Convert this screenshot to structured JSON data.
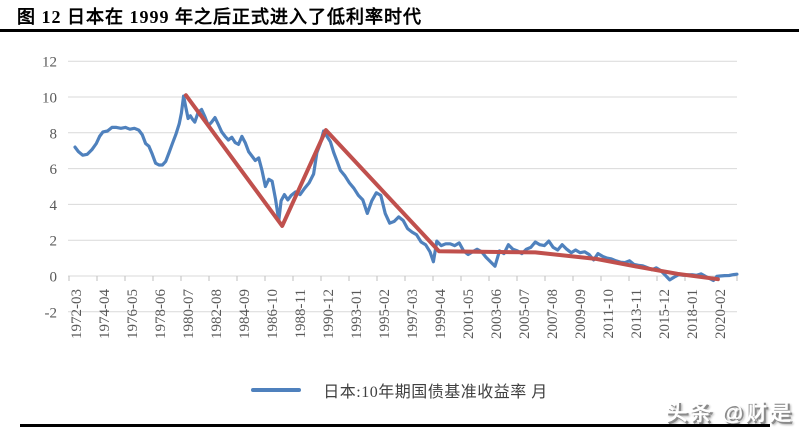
{
  "title": {
    "text": "图 12 日本在 1999 年之后正式进入了低利率时代"
  },
  "watermark": "头条 @财是",
  "chart_data": {
    "type": "line",
    "title": "图 12 日本在 1999 年之后正式进入了低利率时代",
    "xlabel": "",
    "ylabel": "",
    "ylim": [
      -2,
      12
    ],
    "y_ticks": [
      12,
      10,
      8,
      6,
      4,
      2,
      0,
      -2
    ],
    "grid": "horizontal",
    "legend_position": "bottom",
    "legend_label": "日本:10年期国债基准收益率 月",
    "x_tick_labels": [
      "1972-03",
      "1974-04",
      "1976-05",
      "1978-06",
      "1980-07",
      "1982-08",
      "1984-09",
      "1986-10",
      "1988-11",
      "1990-12",
      "1993-01",
      "1995-02",
      "1997-03",
      "1999-04",
      "2001-05",
      "2003-06",
      "2005-07",
      "2007-08",
      "2009-09",
      "2011-10",
      "2013-11",
      "2015-12",
      "2018-01",
      "2020-02"
    ],
    "colors": {
      "series_blue": "#4F81BD",
      "trend_red": "#C0504D",
      "gridline": "#D9D9D9",
      "tick": "#BFBFBF",
      "axis_text": "#595959"
    },
    "series": [
      {
        "key": "jgb_10y_yield_monthly",
        "name": "日本:10年期国债基准收益率 月",
        "color": "#4F81BD",
        "width": 3.2,
        "points": [
          [
            "1972-03",
            7.2
          ],
          [
            "1972-06",
            6.95
          ],
          [
            "1972-10",
            6.75
          ],
          [
            "1973-02",
            6.8
          ],
          [
            "1973-06",
            7.05
          ],
          [
            "1973-10",
            7.4
          ],
          [
            "1974-01",
            7.8
          ],
          [
            "1974-04",
            8.05
          ],
          [
            "1974-08",
            8.1
          ],
          [
            "1974-12",
            8.3
          ],
          [
            "1975-04",
            8.3
          ],
          [
            "1975-08",
            8.25
          ],
          [
            "1975-12",
            8.3
          ],
          [
            "1976-04",
            8.2
          ],
          [
            "1976-08",
            8.25
          ],
          [
            "1976-12",
            8.15
          ],
          [
            "1977-03",
            7.9
          ],
          [
            "1977-06",
            7.4
          ],
          [
            "1977-09",
            7.25
          ],
          [
            "1977-12",
            6.8
          ],
          [
            "1978-03",
            6.3
          ],
          [
            "1978-06",
            6.2
          ],
          [
            "1978-09",
            6.2
          ],
          [
            "1978-12",
            6.4
          ],
          [
            "1979-03",
            6.9
          ],
          [
            "1979-06",
            7.4
          ],
          [
            "1979-09",
            7.9
          ],
          [
            "1979-12",
            8.5
          ],
          [
            "1980-02",
            9.1
          ],
          [
            "1980-04",
            10.05
          ],
          [
            "1980-06",
            9.4
          ],
          [
            "1980-08",
            8.8
          ],
          [
            "1980-10",
            8.95
          ],
          [
            "1980-12",
            8.75
          ],
          [
            "1981-02",
            8.6
          ],
          [
            "1981-05",
            9.15
          ],
          [
            "1981-08",
            9.3
          ],
          [
            "1981-11",
            8.9
          ],
          [
            "1982-02",
            8.4
          ],
          [
            "1982-05",
            8.6
          ],
          [
            "1982-08",
            8.85
          ],
          [
            "1982-11",
            8.45
          ],
          [
            "1983-02",
            8.05
          ],
          [
            "1983-05",
            7.8
          ],
          [
            "1983-08",
            7.6
          ],
          [
            "1983-11",
            7.75
          ],
          [
            "1984-02",
            7.45
          ],
          [
            "1984-05",
            7.35
          ],
          [
            "1984-08",
            7.8
          ],
          [
            "1984-11",
            7.45
          ],
          [
            "1985-02",
            6.95
          ],
          [
            "1985-05",
            6.7
          ],
          [
            "1985-08",
            6.45
          ],
          [
            "1985-11",
            6.6
          ],
          [
            "1986-02",
            5.9
          ],
          [
            "1986-05",
            5.0
          ],
          [
            "1986-08",
            5.4
          ],
          [
            "1986-11",
            5.3
          ],
          [
            "1987-02",
            4.3
          ],
          [
            "1987-05",
            3.1
          ],
          [
            "1987-07",
            4.2
          ],
          [
            "1987-10",
            4.55
          ],
          [
            "1988-01",
            4.25
          ],
          [
            "1988-04",
            4.5
          ],
          [
            "1988-08",
            4.7
          ],
          [
            "1988-12",
            4.55
          ],
          [
            "1989-04",
            4.9
          ],
          [
            "1989-08",
            5.2
          ],
          [
            "1989-12",
            5.7
          ],
          [
            "1990-03",
            6.9
          ],
          [
            "1990-06",
            7.4
          ],
          [
            "1990-09",
            8.1
          ],
          [
            "1990-12",
            7.8
          ],
          [
            "1991-03",
            7.5
          ],
          [
            "1991-06",
            6.9
          ],
          [
            "1991-09",
            6.4
          ],
          [
            "1991-12",
            5.9
          ],
          [
            "1992-04",
            5.6
          ],
          [
            "1992-08",
            5.2
          ],
          [
            "1992-12",
            4.9
          ],
          [
            "1993-04",
            4.5
          ],
          [
            "1993-08",
            4.25
          ],
          [
            "1993-12",
            3.5
          ],
          [
            "1994-04",
            4.2
          ],
          [
            "1994-08",
            4.65
          ],
          [
            "1994-12",
            4.5
          ],
          [
            "1995-04",
            3.5
          ],
          [
            "1995-08",
            2.95
          ],
          [
            "1995-12",
            3.05
          ],
          [
            "1996-04",
            3.3
          ],
          [
            "1996-08",
            3.1
          ],
          [
            "1996-12",
            2.65
          ],
          [
            "1997-04",
            2.45
          ],
          [
            "1997-08",
            2.3
          ],
          [
            "1997-12",
            1.9
          ],
          [
            "1998-04",
            1.75
          ],
          [
            "1998-08",
            1.35
          ],
          [
            "1998-11",
            0.8
          ],
          [
            "1999-02",
            1.95
          ],
          [
            "1999-06",
            1.7
          ],
          [
            "1999-10",
            1.8
          ],
          [
            "2000-02",
            1.8
          ],
          [
            "2000-06",
            1.7
          ],
          [
            "2000-10",
            1.85
          ],
          [
            "2001-02",
            1.4
          ],
          [
            "2001-06",
            1.2
          ],
          [
            "2001-10",
            1.35
          ],
          [
            "2002-02",
            1.5
          ],
          [
            "2002-06",
            1.35
          ],
          [
            "2002-10",
            1.05
          ],
          [
            "2003-02",
            0.8
          ],
          [
            "2003-06",
            0.55
          ],
          [
            "2003-10",
            1.4
          ],
          [
            "2004-02",
            1.25
          ],
          [
            "2004-06",
            1.75
          ],
          [
            "2004-10",
            1.5
          ],
          [
            "2005-02",
            1.4
          ],
          [
            "2005-06",
            1.25
          ],
          [
            "2005-10",
            1.5
          ],
          [
            "2006-02",
            1.6
          ],
          [
            "2006-06",
            1.9
          ],
          [
            "2006-10",
            1.75
          ],
          [
            "2007-02",
            1.7
          ],
          [
            "2007-06",
            1.95
          ],
          [
            "2007-10",
            1.6
          ],
          [
            "2008-02",
            1.45
          ],
          [
            "2008-06",
            1.75
          ],
          [
            "2008-10",
            1.5
          ],
          [
            "2009-02",
            1.3
          ],
          [
            "2009-06",
            1.45
          ],
          [
            "2009-10",
            1.3
          ],
          [
            "2010-02",
            1.35
          ],
          [
            "2010-06",
            1.2
          ],
          [
            "2010-10",
            0.9
          ],
          [
            "2011-02",
            1.25
          ],
          [
            "2011-06",
            1.1
          ],
          [
            "2011-10",
            1.0
          ],
          [
            "2012-02",
            0.95
          ],
          [
            "2012-06",
            0.85
          ],
          [
            "2012-10",
            0.77
          ],
          [
            "2013-02",
            0.75
          ],
          [
            "2013-06",
            0.85
          ],
          [
            "2013-10",
            0.65
          ],
          [
            "2014-02",
            0.6
          ],
          [
            "2014-06",
            0.57
          ],
          [
            "2014-10",
            0.47
          ],
          [
            "2015-02",
            0.35
          ],
          [
            "2015-06",
            0.45
          ],
          [
            "2015-10",
            0.3
          ],
          [
            "2016-02",
            0.05
          ],
          [
            "2016-06",
            -0.22
          ],
          [
            "2016-10",
            -0.06
          ],
          [
            "2017-02",
            0.07
          ],
          [
            "2017-06",
            0.04
          ],
          [
            "2017-10",
            0.06
          ],
          [
            "2018-02",
            0.07
          ],
          [
            "2018-06",
            0.04
          ],
          [
            "2018-10",
            0.12
          ],
          [
            "2019-02",
            -0.02
          ],
          [
            "2019-06",
            -0.15
          ],
          [
            "2019-09",
            -0.25
          ],
          [
            "2019-12",
            -0.02
          ],
          [
            "2020-03",
            0.0
          ],
          [
            "2020-07",
            0.02
          ],
          [
            "2020-11",
            0.03
          ],
          [
            "2021-03",
            0.08
          ],
          [
            "2021-06",
            0.1
          ]
        ]
      },
      {
        "key": "trend_annotation",
        "name": "",
        "color": "#C0504D",
        "width": 4,
        "points": [
          [
            "1980-06",
            10.1
          ],
          [
            "1987-08",
            2.8
          ],
          [
            "1990-11",
            8.15
          ],
          [
            "1999-04",
            1.38
          ],
          [
            "2006-06",
            1.32
          ],
          [
            "2011-01",
            0.95
          ],
          [
            "2014-01",
            0.52
          ],
          [
            "2017-01",
            0.12
          ],
          [
            "2020-01",
            -0.18
          ]
        ]
      }
    ]
  }
}
